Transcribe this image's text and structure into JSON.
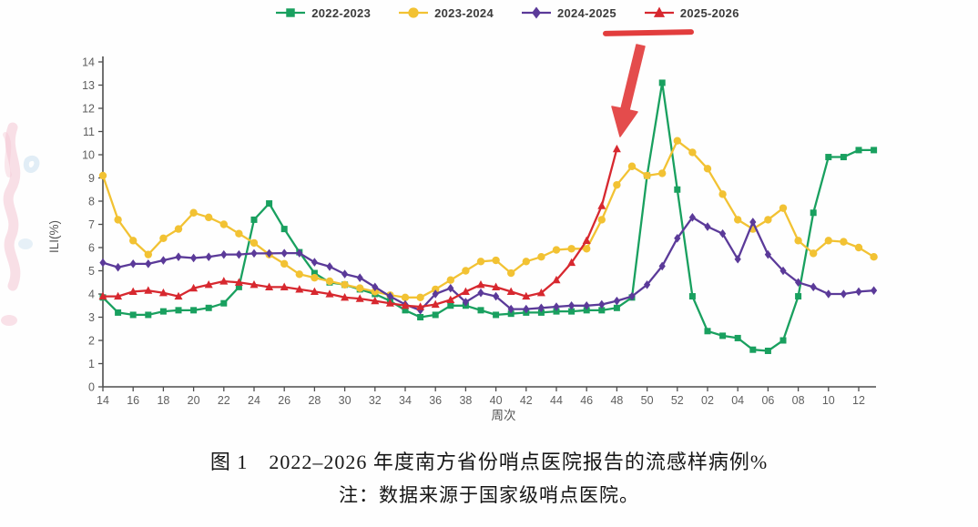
{
  "legend": {
    "items": [
      "2022-2023",
      "2023-2024",
      "2024-2025",
      "2025-2026"
    ],
    "highlighted_item": "2025-2026"
  },
  "annotations": [
    {
      "type": "underline",
      "color": "#e23d3d",
      "target": "legend item 2025-2026"
    },
    {
      "type": "arrow",
      "color": "#e23d3d",
      "target": "latest 2025-2026 data point (week 48)"
    }
  ],
  "chart_data": {
    "type": "line",
    "title": "",
    "xlabel": "周次",
    "ylabel": "ILI(%)",
    "ylim": [
      0,
      14
    ],
    "y_tick_step": 1,
    "y_tick_labels": [
      "0",
      "1",
      "2",
      "3",
      "4",
      "5",
      "6",
      "7",
      "8",
      "9",
      "10",
      "11",
      "12",
      "13",
      "14"
    ],
    "x_tick_labels": [
      "14",
      "16",
      "18",
      "20",
      "22",
      "24",
      "26",
      "28",
      "30",
      "32",
      "34",
      "36",
      "38",
      "40",
      "42",
      "44",
      "46",
      "48",
      "50",
      "52",
      "02",
      "04",
      "06",
      "08",
      "10",
      "12"
    ],
    "grid": false,
    "legend_position": "top",
    "x_categories": [
      "14",
      "15",
      "16",
      "17",
      "18",
      "19",
      "20",
      "21",
      "22",
      "23",
      "24",
      "25",
      "26",
      "27",
      "28",
      "29",
      "30",
      "31",
      "32",
      "33",
      "34",
      "35",
      "36",
      "37",
      "38",
      "39",
      "40",
      "41",
      "42",
      "43",
      "44",
      "45",
      "46",
      "47",
      "48",
      "49",
      "50",
      "51",
      "52",
      "01",
      "02",
      "03",
      "04",
      "05",
      "06",
      "07",
      "08",
      "09",
      "10",
      "11",
      "12",
      "13"
    ],
    "series": [
      {
        "name": "2022-2023",
        "color": "#19a05f",
        "marker": "square",
        "values": [
          3.85,
          3.2,
          3.1,
          3.1,
          3.25,
          3.3,
          3.3,
          3.4,
          3.6,
          4.3,
          7.2,
          7.9,
          6.8,
          5.8,
          4.9,
          4.5,
          4.4,
          4.2,
          4.0,
          3.7,
          3.3,
          3.0,
          3.1,
          3.5,
          3.5,
          3.3,
          3.1,
          3.15,
          3.2,
          3.2,
          3.25,
          3.25,
          3.3,
          3.3,
          3.4,
          3.85,
          9.1,
          13.1,
          8.5,
          3.9,
          2.4,
          2.2,
          2.1,
          1.6,
          1.55,
          2.0,
          3.9,
          7.5,
          9.9,
          9.9,
          10.2,
          10.2
        ]
      },
      {
        "name": "2023-2024",
        "color": "#f2c233",
        "marker": "circle",
        "values": [
          9.1,
          7.2,
          6.3,
          5.7,
          6.4,
          6.8,
          7.5,
          7.3,
          7.0,
          6.6,
          6.2,
          5.7,
          5.3,
          4.85,
          4.7,
          4.55,
          4.4,
          4.25,
          4.1,
          3.95,
          3.85,
          3.85,
          4.2,
          4.6,
          5.0,
          5.4,
          5.45,
          4.9,
          5.4,
          5.6,
          5.9,
          5.95,
          5.95,
          7.2,
          8.7,
          9.5,
          9.1,
          9.2,
          10.6,
          10.1,
          9.4,
          8.3,
          7.2,
          6.8,
          7.2,
          7.7,
          6.3,
          5.75,
          6.3,
          6.25,
          6.0,
          5.6
        ]
      },
      {
        "name": "2024-2025",
        "color": "#5b3a99",
        "marker": "diamond",
        "values": [
          5.35,
          5.15,
          5.3,
          5.3,
          5.45,
          5.6,
          5.55,
          5.6,
          5.7,
          5.7,
          5.75,
          5.75,
          5.76,
          5.76,
          5.37,
          5.18,
          4.86,
          4.7,
          4.3,
          3.9,
          3.55,
          3.3,
          4.0,
          4.25,
          3.65,
          4.05,
          3.9,
          3.35,
          3.35,
          3.4,
          3.45,
          3.5,
          3.5,
          3.55,
          3.7,
          3.9,
          4.4,
          5.2,
          6.4,
          7.3,
          6.9,
          6.6,
          5.5,
          7.1,
          5.7,
          5.0,
          4.5,
          4.3,
          4.0,
          4.0,
          4.1,
          4.15
        ]
      },
      {
        "name": "2025-2026",
        "color": "#d7282f",
        "marker": "triangle",
        "values": [
          3.9,
          3.9,
          4.1,
          4.15,
          4.05,
          3.9,
          4.25,
          4.4,
          4.55,
          4.5,
          4.4,
          4.3,
          4.3,
          4.2,
          4.1,
          4.0,
          3.85,
          3.8,
          3.7,
          3.6,
          3.5,
          3.45,
          3.55,
          3.75,
          4.1,
          4.4,
          4.3,
          4.1,
          3.9,
          4.05,
          4.6,
          5.35,
          6.3,
          7.8,
          10.25
        ]
      }
    ]
  },
  "caption": {
    "title": "图 1　2022–2026 年度南方省份哨点医院报告的流感样病例%",
    "note": "注：数据来源于国家级哨点医院。"
  },
  "colors": {
    "annotation_red": "#e23d3d",
    "axis": "#4d4d4d"
  }
}
